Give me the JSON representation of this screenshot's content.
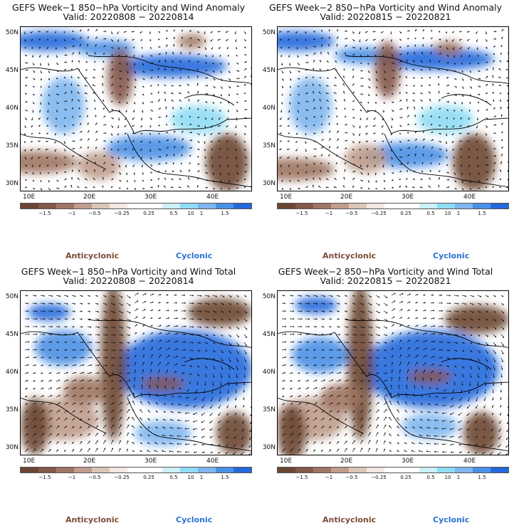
{
  "panels": [
    {
      "title_line1": "GEFS Week−1 850−hPa Vorticity and Wind Anomaly",
      "title_line2": "Valid: 20220808 − 20220814",
      "variant": "anomaly"
    },
    {
      "title_line1": "GEFS Week−2 850−hPa Vorticity and Wind Anomaly",
      "title_line2": "Valid: 20220815 − 20220821",
      "variant": "anomaly"
    },
    {
      "title_line1": "GEFS Week−1 850−hPa Vorticity and Wind Total",
      "title_line2": "Valid: 20220808 − 20220814",
      "variant": "total"
    },
    {
      "title_line1": "GEFS Week−2 850−hPa Vorticity and Wind Total",
      "title_line2": "Valid: 20220815 − 20220821",
      "variant": "total"
    }
  ],
  "latitude_labels": [
    "50N",
    "45N",
    "40N",
    "35N",
    "30N"
  ],
  "longitude_labels": [
    "10E",
    "20E",
    "30E",
    "40E"
  ],
  "colorbar": {
    "labels": [
      "−1.5",
      "−1",
      "−0.5",
      "−0.25",
      "0.25",
      "0.5",
      "1",
      "1.5"
    ],
    "scale_label": "10",
    "colors": [
      "#6b4632",
      "#84584a",
      "#9f7563",
      "#bf9c8c",
      "#dcc5b9",
      "#f3e7e1",
      "#ffffff",
      "#ffffff",
      "#cdf0fa",
      "#8fdcf4",
      "#7fb6ee",
      "#4a90e6",
      "#2369db"
    ]
  },
  "legend": {
    "anticyclonic": "Anticyclonic",
    "cyclonic": "Cyclonic"
  }
}
